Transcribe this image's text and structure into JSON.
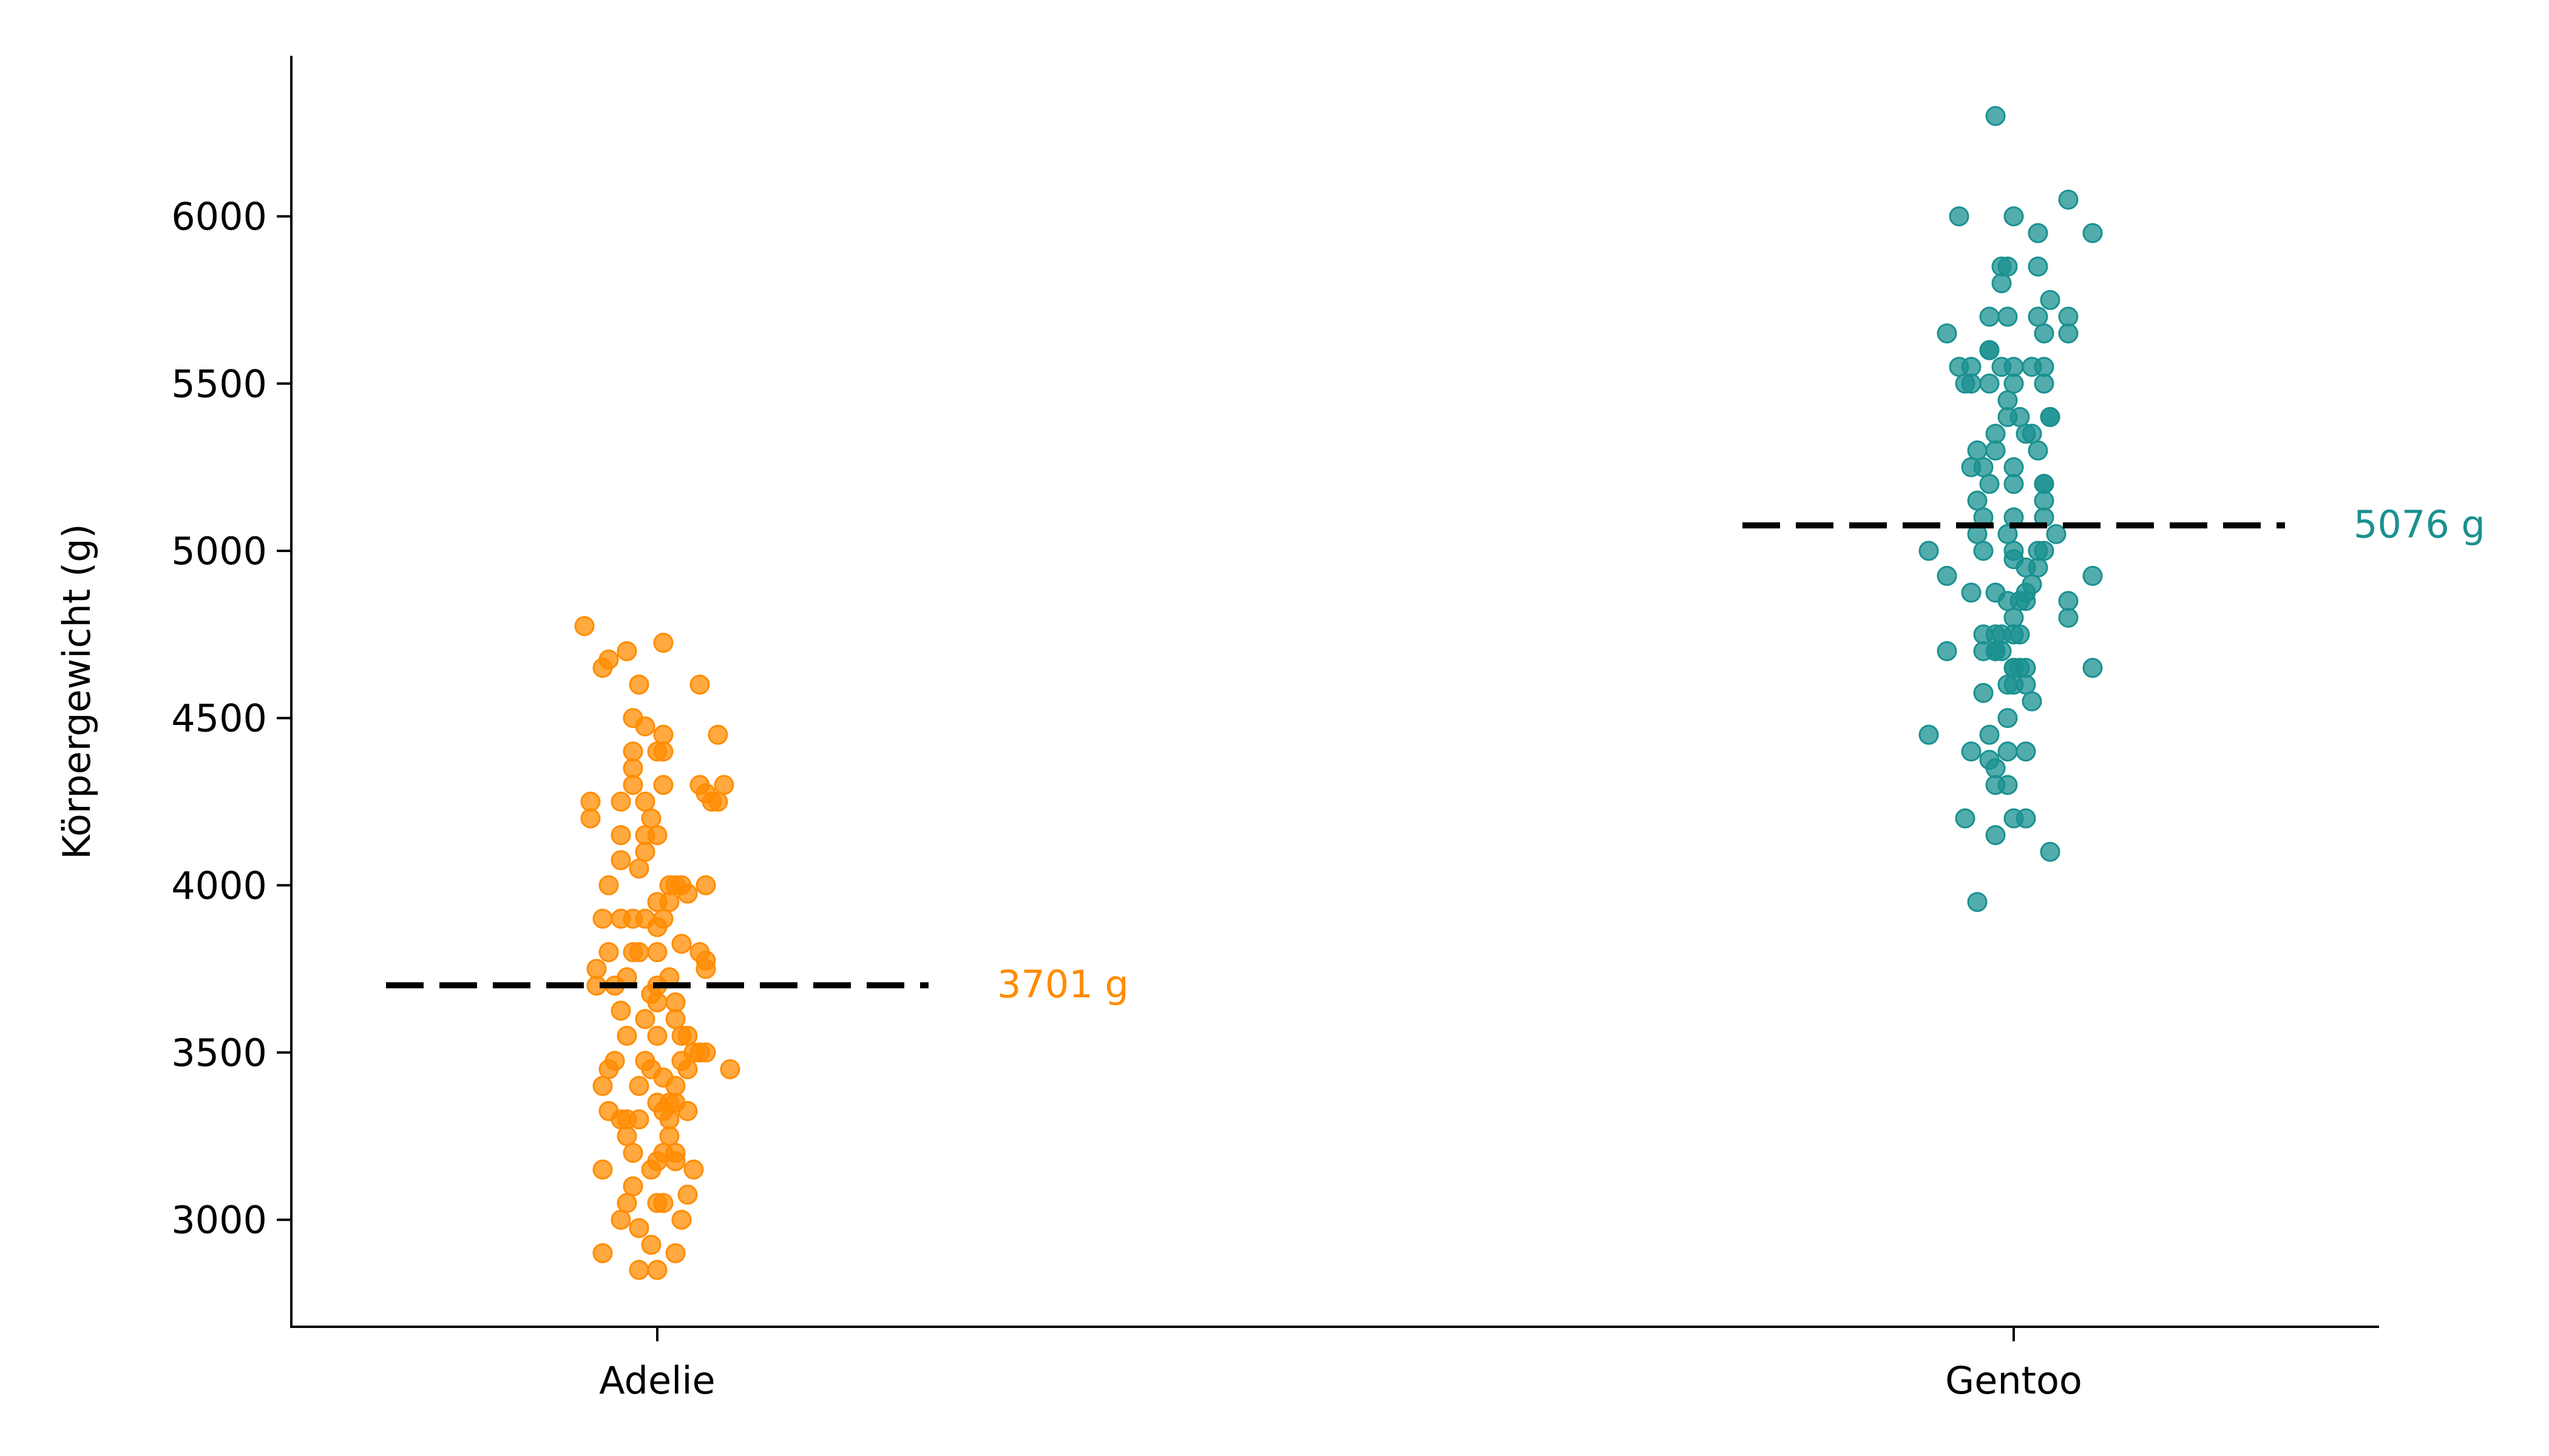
{
  "chart_data": {
    "type": "scatter",
    "title": "",
    "xlabel": "",
    "ylabel": "Körpergewicht (g)",
    "ylim": [
      2680,
      6480
    ],
    "yticks": [
      3000,
      3500,
      4000,
      4500,
      5000,
      5500,
      6000
    ],
    "yticklabels": [
      "3000",
      "3500",
      "4000",
      "4500",
      "5000",
      "5500",
      "6000"
    ],
    "categories": [
      "Adelie",
      "Gentoo"
    ],
    "grid": false,
    "legend": "none",
    "series": [
      {
        "category": "Adelie",
        "color": "#FF8C00",
        "mean": 3701,
        "mean_label": "3701 g",
        "points": [
          [
            -0.12,
            4775
          ],
          [
            0.01,
            4725
          ],
          [
            -0.05,
            4700
          ],
          [
            -0.08,
            4675
          ],
          [
            -0.09,
            4650
          ],
          [
            -0.03,
            4600
          ],
          [
            0.07,
            4600
          ],
          [
            -0.04,
            4500
          ],
          [
            -0.02,
            4475
          ],
          [
            0.01,
            4450
          ],
          [
            0.1,
            4450
          ],
          [
            0.0,
            4400
          ],
          [
            0.01,
            4400
          ],
          [
            -0.04,
            4400
          ],
          [
            -0.04,
            4350
          ],
          [
            0.07,
            4300
          ],
          [
            0.11,
            4300
          ],
          [
            -0.04,
            4300
          ],
          [
            0.01,
            4300
          ],
          [
            0.08,
            4275
          ],
          [
            0.1,
            4250
          ],
          [
            -0.06,
            4250
          ],
          [
            0.09,
            4250
          ],
          [
            -0.11,
            4250
          ],
          [
            -0.02,
            4250
          ],
          [
            -0.11,
            4200
          ],
          [
            -0.01,
            4200
          ],
          [
            0.0,
            4150
          ],
          [
            -0.06,
            4150
          ],
          [
            -0.02,
            4150
          ],
          [
            -0.02,
            4100
          ],
          [
            -0.06,
            4075
          ],
          [
            -0.03,
            4050
          ],
          [
            -0.08,
            4000
          ],
          [
            0.02,
            4000
          ],
          [
            0.04,
            4000
          ],
          [
            0.03,
            4000
          ],
          [
            0.08,
            4000
          ],
          [
            0.05,
            3975
          ],
          [
            0.0,
            3950
          ],
          [
            0.02,
            3950
          ],
          [
            -0.09,
            3900
          ],
          [
            -0.06,
            3900
          ],
          [
            -0.04,
            3900
          ],
          [
            0.01,
            3900
          ],
          [
            -0.02,
            3900
          ],
          [
            0.0,
            3875
          ],
          [
            0.04,
            3825
          ],
          [
            -0.08,
            3800
          ],
          [
            -0.04,
            3800
          ],
          [
            -0.03,
            3800
          ],
          [
            0.0,
            3800
          ],
          [
            0.07,
            3800
          ],
          [
            0.08,
            3775
          ],
          [
            -0.1,
            3750
          ],
          [
            0.08,
            3750
          ],
          [
            0.02,
            3725
          ],
          [
            -0.05,
            3725
          ],
          [
            -0.1,
            3700
          ],
          [
            -0.07,
            3700
          ],
          [
            0.0,
            3700
          ],
          [
            -0.01,
            3675
          ],
          [
            0.03,
            3650
          ],
          [
            0.0,
            3650
          ],
          [
            -0.06,
            3625
          ],
          [
            -0.02,
            3600
          ],
          [
            0.03,
            3600
          ],
          [
            -0.05,
            3550
          ],
          [
            0.0,
            3550
          ],
          [
            0.04,
            3550
          ],
          [
            0.05,
            3550
          ],
          [
            0.07,
            3500
          ],
          [
            0.06,
            3500
          ],
          [
            0.08,
            3500
          ],
          [
            -0.07,
            3475
          ],
          [
            0.04,
            3475
          ],
          [
            -0.02,
            3475
          ],
          [
            0.05,
            3450
          ],
          [
            -0.08,
            3450
          ],
          [
            0.12,
            3450
          ],
          [
            -0.01,
            3450
          ],
          [
            0.01,
            3425
          ],
          [
            0.03,
            3400
          ],
          [
            -0.09,
            3400
          ],
          [
            -0.03,
            3400
          ],
          [
            0.02,
            3350
          ],
          [
            0.0,
            3350
          ],
          [
            0.03,
            3350
          ],
          [
            -0.08,
            3325
          ],
          [
            0.01,
            3325
          ],
          [
            0.05,
            3325
          ],
          [
            -0.05,
            3300
          ],
          [
            -0.03,
            3300
          ],
          [
            -0.06,
            3300
          ],
          [
            0.02,
            3300
          ],
          [
            0.02,
            3250
          ],
          [
            -0.05,
            3250
          ],
          [
            -0.04,
            3200
          ],
          [
            0.03,
            3200
          ],
          [
            0.01,
            3200
          ],
          [
            0.0,
            3175
          ],
          [
            0.03,
            3175
          ],
          [
            -0.09,
            3150
          ],
          [
            -0.01,
            3150
          ],
          [
            0.06,
            3150
          ],
          [
            -0.04,
            3100
          ],
          [
            0.05,
            3075
          ],
          [
            0.01,
            3050
          ],
          [
            -0.05,
            3050
          ],
          [
            0.0,
            3050
          ],
          [
            -0.06,
            3000
          ],
          [
            0.04,
            3000
          ],
          [
            -0.03,
            2975
          ],
          [
            -0.01,
            2925
          ],
          [
            0.03,
            2900
          ],
          [
            -0.09,
            2900
          ],
          [
            0.0,
            2850
          ],
          [
            -0.03,
            2850
          ]
        ]
      },
      {
        "category": "Gentoo",
        "color": "#1A9090",
        "mean": 5076,
        "mean_label": "5076 g",
        "points": [
          [
            -0.03,
            6300
          ],
          [
            0.09,
            6050
          ],
          [
            -0.09,
            6000
          ],
          [
            0.0,
            6000
          ],
          [
            0.13,
            5950
          ],
          [
            0.04,
            5950
          ],
          [
            -0.02,
            5850
          ],
          [
            -0.01,
            5850
          ],
          [
            0.04,
            5850
          ],
          [
            -0.02,
            5800
          ],
          [
            0.06,
            5750
          ],
          [
            -0.04,
            5700
          ],
          [
            -0.01,
            5700
          ],
          [
            0.04,
            5700
          ],
          [
            0.09,
            5700
          ],
          [
            -0.11,
            5650
          ],
          [
            0.05,
            5650
          ],
          [
            0.09,
            5650
          ],
          [
            -0.04,
            5600
          ],
          [
            -0.04,
            5600
          ],
          [
            -0.09,
            5550
          ],
          [
            -0.07,
            5550
          ],
          [
            -0.02,
            5550
          ],
          [
            0.0,
            5550
          ],
          [
            0.03,
            5550
          ],
          [
            0.05,
            5550
          ],
          [
            -0.08,
            5500
          ],
          [
            -0.07,
            5500
          ],
          [
            -0.04,
            5500
          ],
          [
            0.0,
            5500
          ],
          [
            0.05,
            5500
          ],
          [
            -0.01,
            5450
          ],
          [
            0.01,
            5400
          ],
          [
            -0.01,
            5400
          ],
          [
            0.06,
            5400
          ],
          [
            0.06,
            5400
          ],
          [
            0.02,
            5350
          ],
          [
            0.03,
            5350
          ],
          [
            -0.03,
            5350
          ],
          [
            0.04,
            5300
          ],
          [
            -0.06,
            5300
          ],
          [
            -0.03,
            5300
          ],
          [
            -0.07,
            5250
          ],
          [
            -0.05,
            5250
          ],
          [
            0.0,
            5250
          ],
          [
            -0.04,
            5200
          ],
          [
            0.0,
            5200
          ],
          [
            0.05,
            5200
          ],
          [
            0.05,
            5200
          ],
          [
            -0.06,
            5150
          ],
          [
            0.05,
            5150
          ],
          [
            -0.05,
            5100
          ],
          [
            0.0,
            5100
          ],
          [
            0.05,
            5100
          ],
          [
            -0.06,
            5050
          ],
          [
            -0.01,
            5050
          ],
          [
            0.07,
            5050
          ],
          [
            -0.14,
            5000
          ],
          [
            -0.05,
            5000
          ],
          [
            0.0,
            5000
          ],
          [
            0.04,
            5000
          ],
          [
            0.05,
            5000
          ],
          [
            0.0,
            4975
          ],
          [
            0.04,
            4950
          ],
          [
            0.02,
            4950
          ],
          [
            -0.11,
            4925
          ],
          [
            0.13,
            4925
          ],
          [
            0.03,
            4900
          ],
          [
            0.02,
            4875
          ],
          [
            -0.07,
            4875
          ],
          [
            -0.03,
            4875
          ],
          [
            0.09,
            4850
          ],
          [
            0.01,
            4850
          ],
          [
            0.02,
            4850
          ],
          [
            -0.01,
            4850
          ],
          [
            0.0,
            4800
          ],
          [
            0.09,
            4800
          ],
          [
            -0.05,
            4750
          ],
          [
            -0.03,
            4750
          ],
          [
            -0.02,
            4750
          ],
          [
            0.0,
            4750
          ],
          [
            0.01,
            4750
          ],
          [
            -0.05,
            4700
          ],
          [
            -0.03,
            4700
          ],
          [
            -0.11,
            4700
          ],
          [
            -0.03,
            4700
          ],
          [
            -0.02,
            4700
          ],
          [
            0.0,
            4650
          ],
          [
            0.02,
            4650
          ],
          [
            0.0,
            4650
          ],
          [
            0.01,
            4650
          ],
          [
            0.13,
            4650
          ],
          [
            0.0,
            4600
          ],
          [
            -0.01,
            4600
          ],
          [
            0.02,
            4600
          ],
          [
            -0.05,
            4575
          ],
          [
            0.03,
            4550
          ],
          [
            -0.01,
            4500
          ],
          [
            -0.14,
            4450
          ],
          [
            -0.04,
            4450
          ],
          [
            -0.07,
            4400
          ],
          [
            -0.01,
            4400
          ],
          [
            0.02,
            4400
          ],
          [
            -0.04,
            4375
          ],
          [
            -0.03,
            4350
          ],
          [
            -0.03,
            4300
          ],
          [
            -0.01,
            4300
          ],
          [
            -0.08,
            4200
          ],
          [
            0.0,
            4200
          ],
          [
            0.02,
            4200
          ],
          [
            -0.03,
            4150
          ],
          [
            0.06,
            4100
          ],
          [
            -0.06,
            3950
          ]
        ]
      }
    ]
  }
}
